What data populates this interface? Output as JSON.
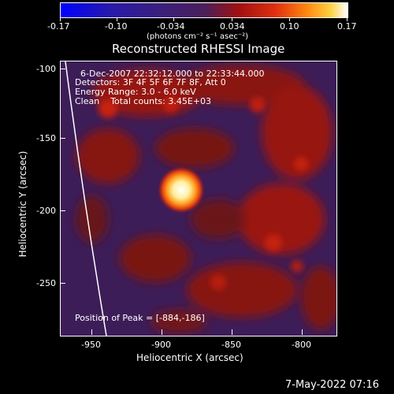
{
  "colorbar": {
    "ticks": [
      "-0.17",
      "-0.10",
      "-0.034",
      "0.034",
      "0.10",
      "0.17"
    ],
    "units": "(photons cm⁻² s⁻¹ asec⁻²)"
  },
  "title": "Reconstructed RHESSI Image",
  "info": {
    "line1": "6-Dec-2007 22:32:12.000 to 22:33:44.000",
    "line2": "Detectors: 3F 4F 5F 6F 7F 8F, Att 0",
    "line3": "Energy Range: 3.0 - 6.0 keV",
    "line4": "Clean    Total counts: 3.45E+03"
  },
  "peak_label": "Position of Peak = [-884,-186]",
  "axes": {
    "xlabel": "Heliocentric X (arcsec)",
    "ylabel": "Heliocentric Y (arcsec)",
    "xticks": [
      "-950",
      "-900",
      "-850",
      "-800"
    ],
    "yticks": [
      "-100",
      "-150",
      "-200",
      "-250"
    ]
  },
  "footer_date": "7-May-2022 07:16",
  "colors": {
    "background": "#000000",
    "plot_background": "#3d1d58",
    "emission_red": "#b0180e",
    "peak_core": "#ffffff"
  }
}
